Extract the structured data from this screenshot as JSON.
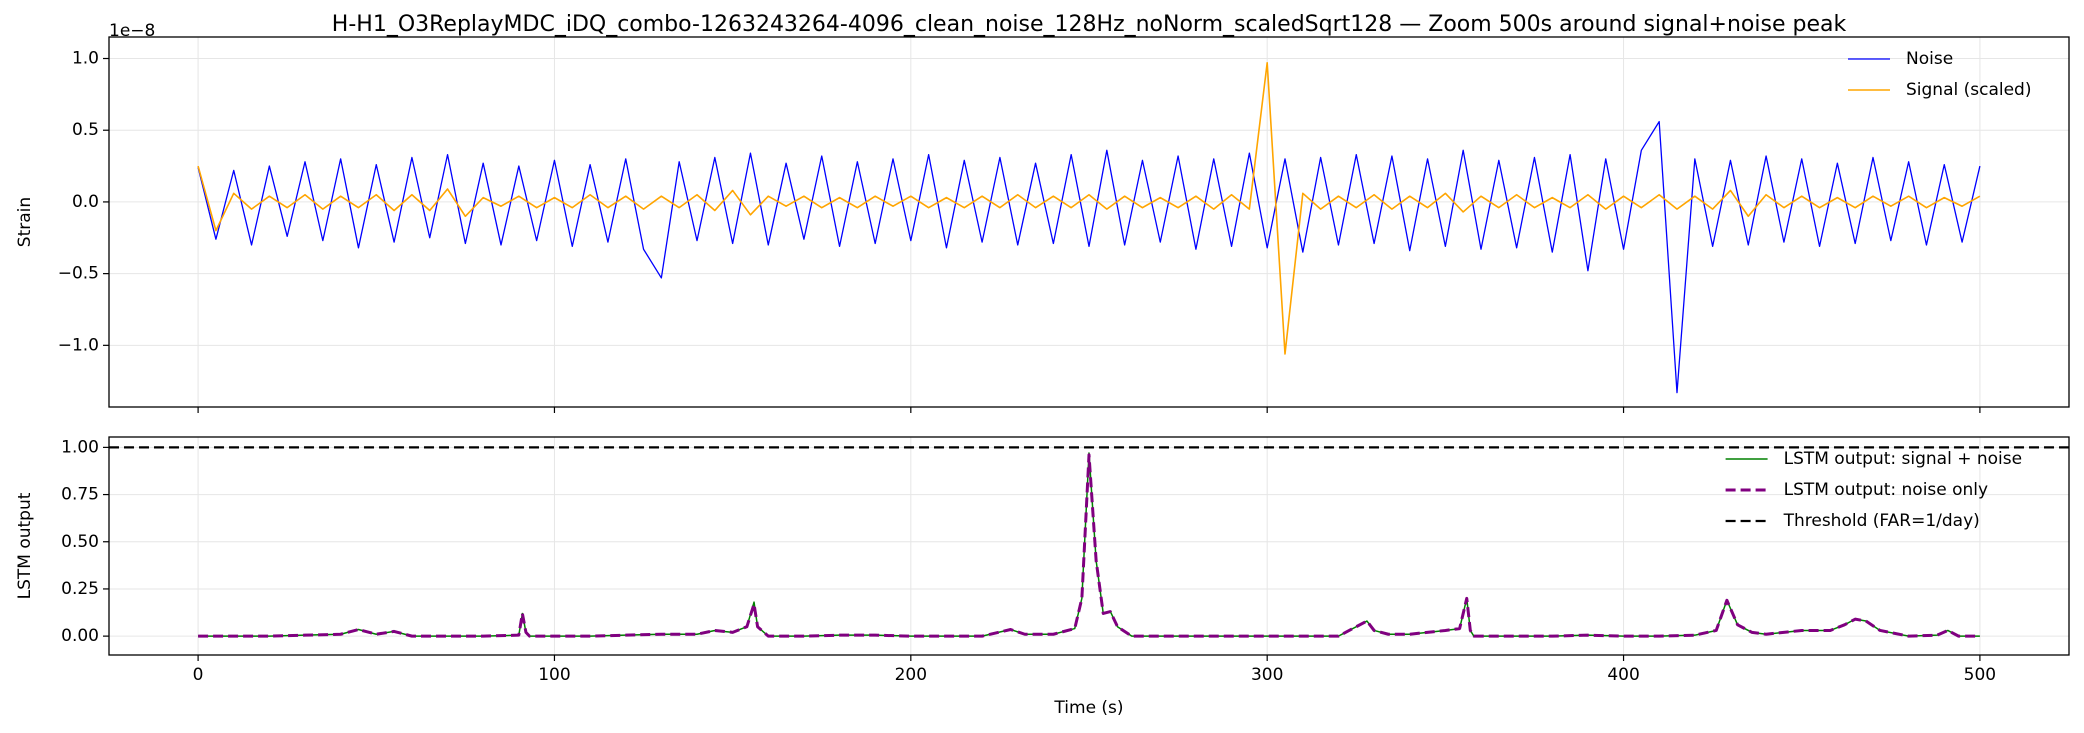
{
  "chart_data": [
    {
      "type": "line",
      "title": "H-H1_O3ReplayMDC_iDQ_combo-1263243264-4096_clean_noise_128Hz_noNorm_scaledSqrt128 — Zoom 500s around signal+noise peak",
      "ylabel": "Strain",
      "y_offset_label": "1e−8",
      "xlim": [
        -25,
        525
      ],
      "ylim": [
        -1.43,
        1.15
      ],
      "xticks": [
        0,
        100,
        200,
        300,
        400,
        500
      ],
      "show_xtick_labels": false,
      "yticks": [
        {
          "value": -1,
          "label": "−1.0"
        },
        {
          "value": -0.5,
          "label": "−0.5"
        },
        {
          "value": 0,
          "label": "0.0"
        },
        0.5,
        {
          "value": 1,
          "label": "1.0"
        }
      ],
      "grid": true,
      "legend": "upper right",
      "x": [
        0,
        5,
        10,
        15,
        20,
        25,
        30,
        35,
        40,
        45,
        50,
        55,
        60,
        65,
        70,
        75,
        80,
        85,
        90,
        95,
        100,
        105,
        110,
        115,
        120,
        125,
        130,
        135,
        140,
        145,
        150,
        155,
        160,
        165,
        170,
        175,
        180,
        185,
        190,
        195,
        200,
        205,
        210,
        215,
        220,
        225,
        230,
        235,
        240,
        245,
        250,
        255,
        260,
        265,
        270,
        275,
        280,
        285,
        290,
        295,
        300,
        305,
        310,
        315,
        320,
        325,
        330,
        335,
        340,
        345,
        350,
        355,
        360,
        365,
        370,
        375,
        380,
        385,
        390,
        395,
        400,
        405,
        410,
        415,
        420,
        425,
        430,
        435,
        440,
        445,
        450,
        455,
        460,
        465,
        470,
        475,
        480,
        485,
        490,
        495,
        500
      ],
      "series": [
        {
          "name": "Noise",
          "color": "#0000ff",
          "width": 1.3,
          "values": [
            0.24,
            -0.26,
            0.22,
            -0.3,
            0.25,
            -0.24,
            0.28,
            -0.27,
            0.3,
            -0.32,
            0.26,
            -0.28,
            0.31,
            -0.25,
            0.33,
            -0.29,
            0.27,
            -0.3,
            0.25,
            -0.27,
            0.29,
            -0.31,
            0.26,
            -0.28,
            0.3,
            -0.33,
            -0.53,
            0.28,
            -0.27,
            0.31,
            -0.29,
            0.34,
            -0.3,
            0.27,
            -0.26,
            0.32,
            -0.31,
            0.28,
            -0.29,
            0.3,
            -0.27,
            0.33,
            -0.32,
            0.29,
            -0.28,
            0.31,
            -0.3,
            0.27,
            -0.29,
            0.33,
            -0.31,
            0.36,
            -0.3,
            0.29,
            -0.28,
            0.32,
            -0.33,
            0.3,
            -0.31,
            0.34,
            -0.32,
            0.3,
            -0.35,
            0.31,
            -0.3,
            0.33,
            -0.29,
            0.32,
            -0.34,
            0.3,
            -0.31,
            0.36,
            -0.33,
            0.29,
            -0.32,
            0.31,
            -0.35,
            0.33,
            -0.48,
            0.3,
            -0.33,
            0.36,
            0.56,
            -1.33,
            0.3,
            -0.31,
            0.29,
            -0.3,
            0.32,
            -0.28,
            0.3,
            -0.31,
            0.27,
            -0.29,
            0.31,
            -0.27,
            0.28,
            -0.3,
            0.26,
            -0.28,
            0.25
          ]
        },
        {
          "name": "Signal (scaled)",
          "color": "#ffa500",
          "width": 1.6,
          "values": [
            0.25,
            -0.2,
            0.06,
            -0.05,
            0.04,
            -0.04,
            0.05,
            -0.05,
            0.04,
            -0.04,
            0.05,
            -0.06,
            0.05,
            -0.06,
            0.09,
            -0.1,
            0.03,
            -0.03,
            0.04,
            -0.04,
            0.03,
            -0.04,
            0.05,
            -0.04,
            0.04,
            -0.05,
            0.04,
            -0.04,
            0.05,
            -0.06,
            0.08,
            -0.09,
            0.04,
            -0.03,
            0.04,
            -0.04,
            0.03,
            -0.04,
            0.04,
            -0.03,
            0.04,
            -0.04,
            0.03,
            -0.04,
            0.04,
            -0.04,
            0.05,
            -0.04,
            0.04,
            -0.04,
            0.05,
            -0.05,
            0.04,
            -0.04,
            0.03,
            -0.04,
            0.04,
            -0.05,
            0.05,
            -0.05,
            0.97,
            -1.06,
            0.06,
            -0.05,
            0.04,
            -0.04,
            0.05,
            -0.05,
            0.04,
            -0.04,
            0.06,
            -0.07,
            0.04,
            -0.04,
            0.05,
            -0.04,
            0.03,
            -0.04,
            0.05,
            -0.05,
            0.04,
            -0.04,
            0.05,
            -0.05,
            0.04,
            -0.05,
            0.08,
            -0.1,
            0.05,
            -0.04,
            0.04,
            -0.04,
            0.03,
            -0.04,
            0.04,
            -0.03,
            0.04,
            -0.04,
            0.03,
            -0.03,
            0.04
          ]
        }
      ]
    },
    {
      "type": "line",
      "xlabel": "Time (s)",
      "ylabel": "LSTM output",
      "xlim": [
        -25,
        525
      ],
      "ylim": [
        -0.1,
        1.055
      ],
      "xticks": [
        0,
        100,
        200,
        300,
        400,
        500
      ],
      "show_xtick_labels": true,
      "yticks": [
        {
          "value": 0,
          "label": "0.00"
        },
        0.25,
        {
          "value": 0.5,
          "label": "0.50"
        },
        0.75,
        {
          "value": 1,
          "label": "1.00"
        }
      ],
      "grid": true,
      "legend": "upper right",
      "x": [
        0,
        10,
        20,
        30,
        40,
        45,
        50,
        55,
        60,
        70,
        80,
        90,
        91,
        92,
        93,
        100,
        110,
        120,
        130,
        140,
        145,
        150,
        154,
        156,
        157,
        160,
        170,
        180,
        190,
        200,
        210,
        220,
        228,
        232,
        240,
        246,
        248,
        250,
        252,
        254,
        256,
        258,
        262,
        270,
        280,
        290,
        300,
        310,
        320,
        328,
        330,
        334,
        340,
        350,
        354,
        356,
        357,
        358,
        360,
        370,
        380,
        390,
        400,
        410,
        420,
        426,
        429,
        432,
        436,
        440,
        450,
        458,
        462,
        465,
        468,
        472,
        480,
        488,
        491,
        494,
        500
      ],
      "series": [
        {
          "name": "LSTM output: signal + noise",
          "color": "#008000",
          "width": 1.5,
          "linestyle": "solid",
          "values": [
            0,
            0,
            0,
            0.005,
            0.01,
            0.035,
            0.01,
            0.025,
            0,
            0,
            0,
            0.005,
            0.12,
            0.02,
            0,
            0,
            0,
            0.005,
            0.01,
            0.01,
            0.03,
            0.02,
            0.05,
            0.18,
            0.05,
            0,
            0,
            0.005,
            0.005,
            0,
            0,
            0,
            0.035,
            0.01,
            0.01,
            0.04,
            0.2,
            0.97,
            0.4,
            0.12,
            0.13,
            0.05,
            0,
            0,
            0,
            0,
            0,
            0,
            0,
            0.08,
            0.03,
            0.01,
            0.01,
            0.03,
            0.04,
            0.2,
            0.03,
            0,
            0,
            0,
            0,
            0.005,
            0,
            0,
            0.005,
            0.03,
            0.19,
            0.06,
            0.02,
            0.01,
            0.03,
            0.03,
            0.06,
            0.09,
            0.08,
            0.03,
            0,
            0.005,
            0.03,
            0,
            0
          ]
        },
        {
          "name": "LSTM output: noise only",
          "color": "#800080",
          "width": 3,
          "linestyle": "dashed",
          "values": [
            0,
            0,
            0,
            0.005,
            0.01,
            0.035,
            0.01,
            0.025,
            0,
            0,
            0,
            0.005,
            0.12,
            0.02,
            0,
            0,
            0,
            0.005,
            0.01,
            0.01,
            0.03,
            0.02,
            0.05,
            0.17,
            0.05,
            0,
            0,
            0.005,
            0.005,
            0,
            0,
            0,
            0.035,
            0.01,
            0.01,
            0.04,
            0.2,
            0.96,
            0.4,
            0.12,
            0.13,
            0.05,
            0,
            0,
            0,
            0,
            0,
            0,
            0,
            0.08,
            0.03,
            0.01,
            0.01,
            0.03,
            0.04,
            0.2,
            0.03,
            0,
            0,
            0,
            0,
            0.005,
            0,
            0,
            0.005,
            0.03,
            0.19,
            0.06,
            0.02,
            0.01,
            0.03,
            0.03,
            0.06,
            0.09,
            0.08,
            0.03,
            0,
            0.005,
            0.03,
            0,
            0
          ]
        }
      ],
      "hlines": [
        {
          "name": "Threshold (FAR=1/day)",
          "color": "#000000",
          "value": 1,
          "linestyle": "dashed"
        }
      ]
    }
  ]
}
